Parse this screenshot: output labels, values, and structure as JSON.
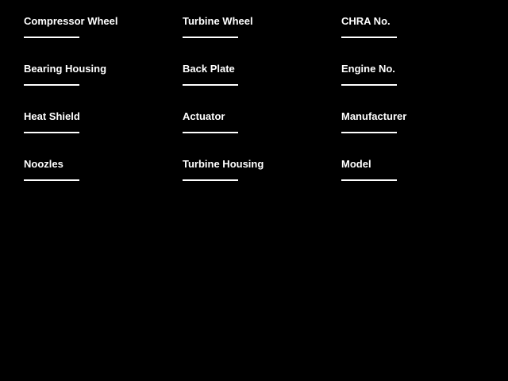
{
  "page": {
    "background_color": "#000000",
    "text_color": "#ffffff"
  },
  "form": {
    "columns": [
      {
        "fields": [
          {
            "label": "Compressor Wheel",
            "value": ""
          },
          {
            "label": "Bearing Housing",
            "value": ""
          },
          {
            "label": "Heat Shield",
            "value": ""
          },
          {
            "label": "Noozles",
            "value": ""
          }
        ]
      },
      {
        "fields": [
          {
            "label": "Turbine Wheel",
            "value": ""
          },
          {
            "label": "Back Plate",
            "value": ""
          },
          {
            "label": "Actuator",
            "value": ""
          },
          {
            "label": "Turbine Housing",
            "value": ""
          }
        ]
      },
      {
        "fields": [
          {
            "label": "CHRA No.",
            "value": ""
          },
          {
            "label": "Engine No.",
            "value": ""
          },
          {
            "label": "Manufacturer",
            "value": ""
          },
          {
            "label": "Model",
            "value": ""
          }
        ]
      }
    ]
  }
}
